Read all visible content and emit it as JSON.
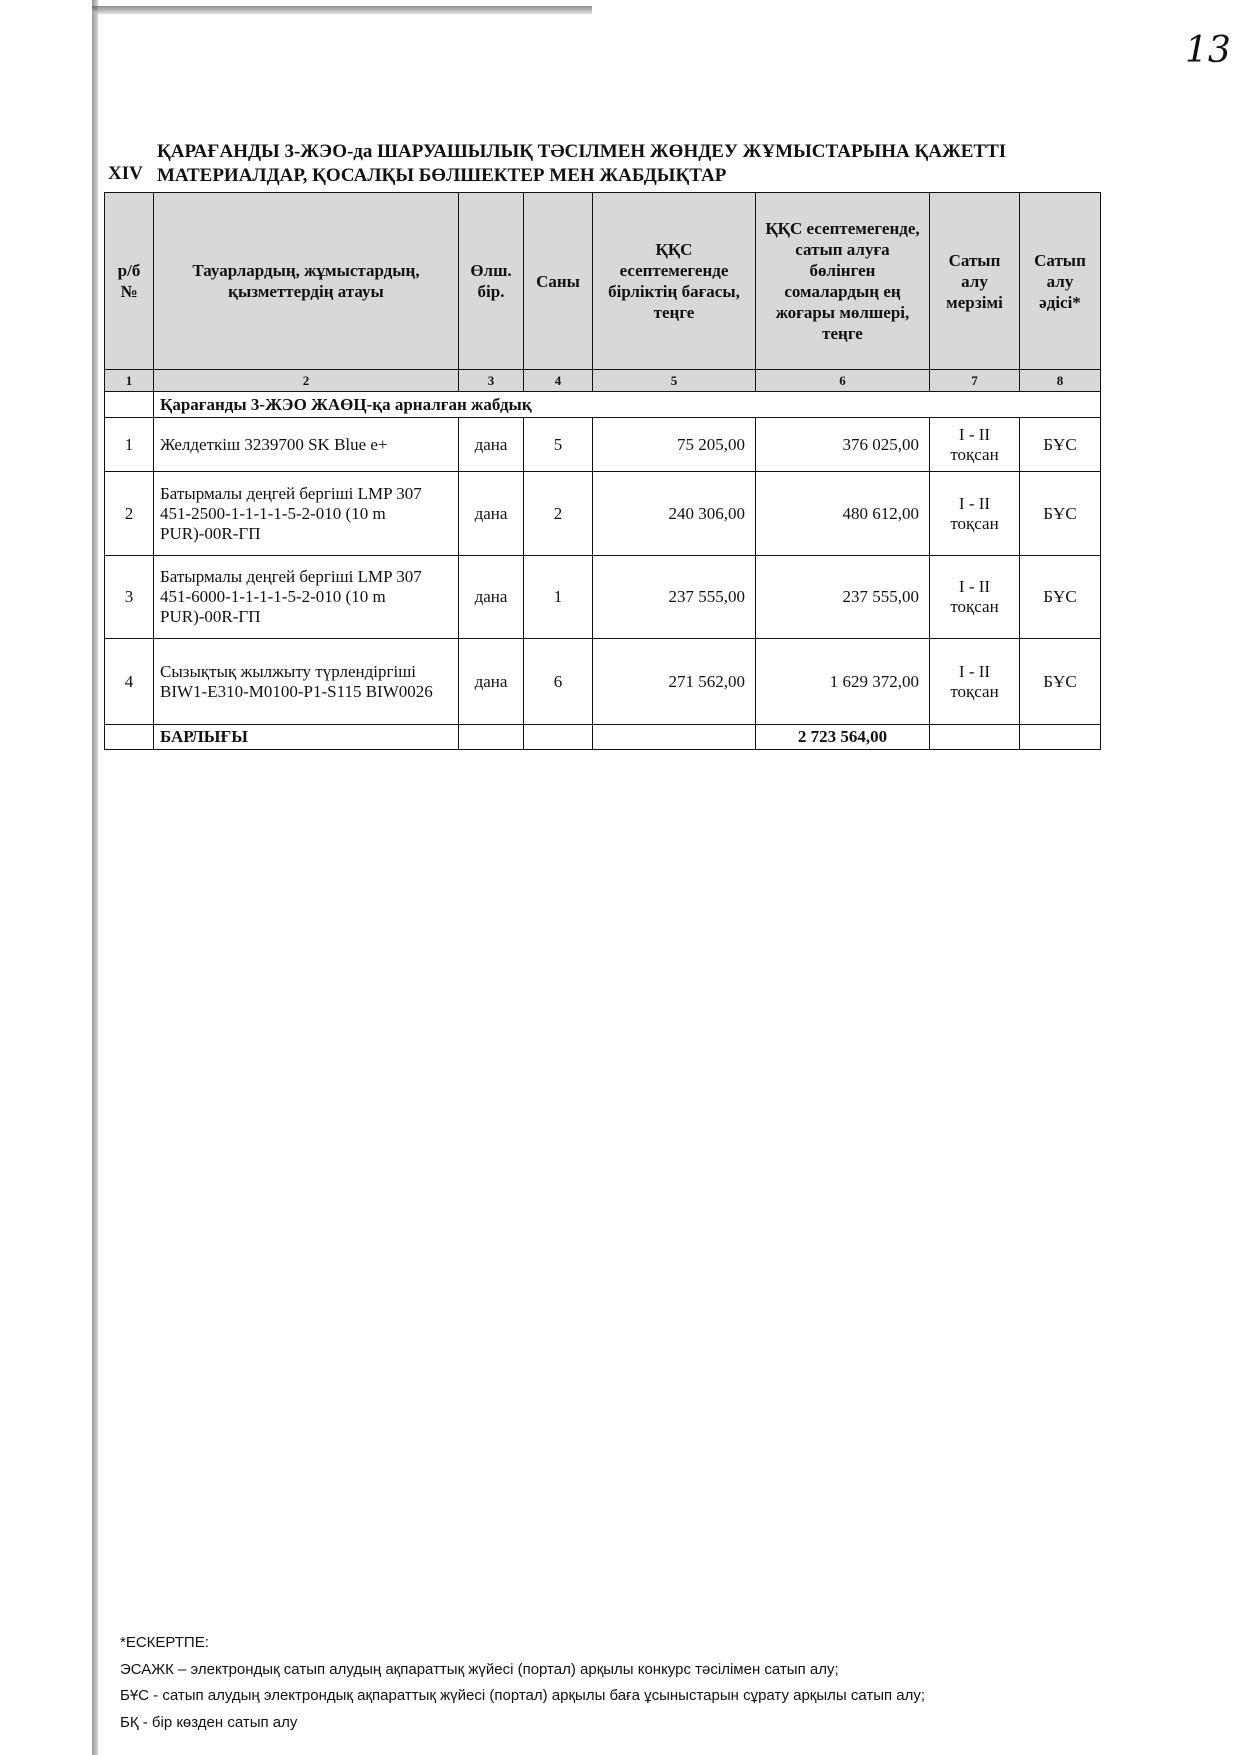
{
  "page_number": "13",
  "section_number": "XIV",
  "title_lines": [
    "ҚАРАҒАНДЫ 3-ЖЭО-да ШАРУАШЫЛЫҚ ТӘСІЛМЕН ЖӨНДЕУ ЖҰМЫСТАРЫНА ҚАЖЕТТІ",
    "МАТЕРИАЛДАР, ҚОСАЛҚЫ БӨЛШЕКТЕР МЕН ЖАБДЫҚТАР"
  ],
  "table": {
    "headers": [
      "р/б №",
      "Тауарлардың, жұмыстардың, қызметтердің атауы",
      "Өлш. бір.",
      "Саны",
      "ҚҚС есептемегенде бірліктің бағасы, теңге",
      "ҚҚС есептемегенде, сатып алуға бөлінген сомалардың ең жоғары мөлшері, теңге",
      "Сатып алу мерзімі",
      "Сатып алу әдісі*"
    ],
    "column_numbers": [
      "1",
      "2",
      "3",
      "4",
      "5",
      "6",
      "7",
      "8"
    ],
    "section_title": "Қарағанды 3-ЖЭО ЖАӨЦ-қа арналған жабдық",
    "rows": [
      {
        "n": "1",
        "name": "Желдеткіш 3239700 SK Blue e+",
        "unit": "дана",
        "qty": "5",
        "price": "75 205,00",
        "total": "376 025,00",
        "term": "I - II тоқсан",
        "method": "БҰС"
      },
      {
        "n": "2",
        "name": "Батырмалы деңгей бергіші LMP 307 451-2500-1-1-1-1-5-2-010 (10 m PUR)-00R-ГП",
        "unit": "дана",
        "qty": "2",
        "price": "240 306,00",
        "total": "480 612,00",
        "term": "I - II тоқсан",
        "method": "БҰС"
      },
      {
        "n": "3",
        "name": "Батырмалы деңгей бергіші LMP 307 451-6000-1-1-1-1-5-2-010 (10 m PUR)-00R-ГП",
        "unit": "дана",
        "qty": "1",
        "price": "237 555,00",
        "total": "237 555,00",
        "term": "I - II тоқсан",
        "method": "БҰС"
      },
      {
        "n": "4",
        "name": "Сызықтық жылжыту түрлендіргіші BIW1-E310-M0100-P1-S115 BIW0026",
        "unit": "дана",
        "qty": "6",
        "price": "271 562,00",
        "total": "1 629 372,00",
        "term": "I - II тоқсан",
        "method": "БҰС"
      }
    ],
    "total_label": "БАРЛЫҒЫ",
    "total_value": "2 723 564,00"
  },
  "footer": {
    "heading": "*ЕСКЕРТПЕ:",
    "lines": [
      "ЭСАЖК – электрондық сатып алудың ақпараттық жүйесі (портал) арқылы конкурс тәсілімен сатып алу;",
      "БҰС - сатып алудың электрондық ақпараттық жүйесі (портал) арқылы баға ұсыныстарын сұрату арқылы сатып алу;",
      "БҚ - бір көзден сатып алу"
    ]
  }
}
